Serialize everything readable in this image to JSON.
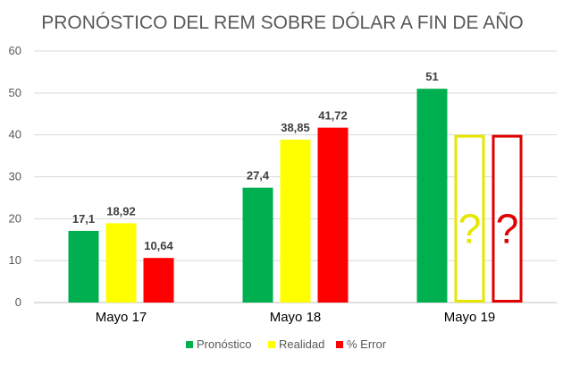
{
  "chart_data": {
    "type": "bar",
    "title": "PRONÓSTICO DEL REM SOBRE DÓLAR A FIN DE AÑO",
    "xlabel": "",
    "ylabel": "",
    "ylim": [
      0,
      60
    ],
    "yticks": [
      0,
      10,
      20,
      30,
      40,
      50,
      60
    ],
    "grid": true,
    "legend_position": "bottom",
    "categories": [
      "Mayo 17",
      "Mayo 18",
      "Mayo 19"
    ],
    "series": [
      {
        "name": "Pronóstico",
        "color": "#00b050",
        "values": [
          17.1,
          27.4,
          51
        ],
        "labels": [
          "17,1",
          "27,4",
          "51"
        ],
        "unknown": [
          false,
          false,
          false
        ]
      },
      {
        "name": "Realidad",
        "color": "#ffff00",
        "values": [
          18.92,
          38.85,
          40
        ],
        "labels": [
          "18,92",
          "38,85",
          "?"
        ],
        "unknown": [
          false,
          false,
          true
        ]
      },
      {
        "name": "% Error",
        "color": "#ff0000",
        "values": [
          10.64,
          41.72,
          40
        ],
        "labels": [
          "10,64",
          "41,72",
          "?"
        ],
        "unknown": [
          false,
          false,
          true
        ]
      }
    ],
    "unknown_outline_colors": [
      "#e6e600",
      "#e00000"
    ]
  }
}
